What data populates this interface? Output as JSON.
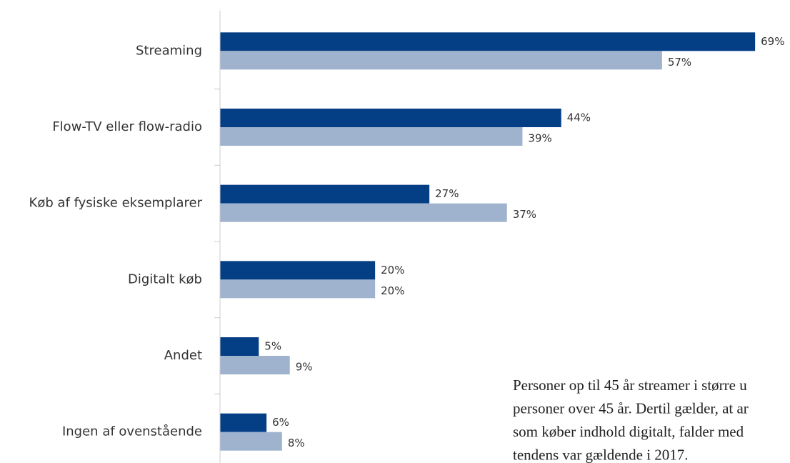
{
  "chart_data": {
    "type": "bar",
    "orientation": "horizontal",
    "categories": [
      "Streaming",
      "Flow-TV eller flow-radio",
      "Køb af fysiske eksemplarer",
      "Digitalt køb",
      "Andet",
      "Ingen af ovenstående"
    ],
    "series": [
      {
        "color": "#043f86",
        "values": [
          69,
          44,
          27,
          20,
          5,
          6
        ],
        "value_labels": [
          "69%",
          "44%",
          "27%",
          "20%",
          "5%",
          "6%"
        ]
      },
      {
        "color": "#9fb3cf",
        "values": [
          57,
          39,
          37,
          20,
          9,
          8
        ],
        "value_labels": [
          "57%",
          "39%",
          "37%",
          "20%",
          "9%",
          "8%"
        ]
      }
    ],
    "xlim": [
      0,
      70
    ],
    "annotation": [
      "Personer op til 45 år streamer i større u",
      "personer over 45 år. Dertil gælder, at ar",
      "som køber indhold digitalt, falder med",
      "tendens var gældende i 2017."
    ]
  }
}
